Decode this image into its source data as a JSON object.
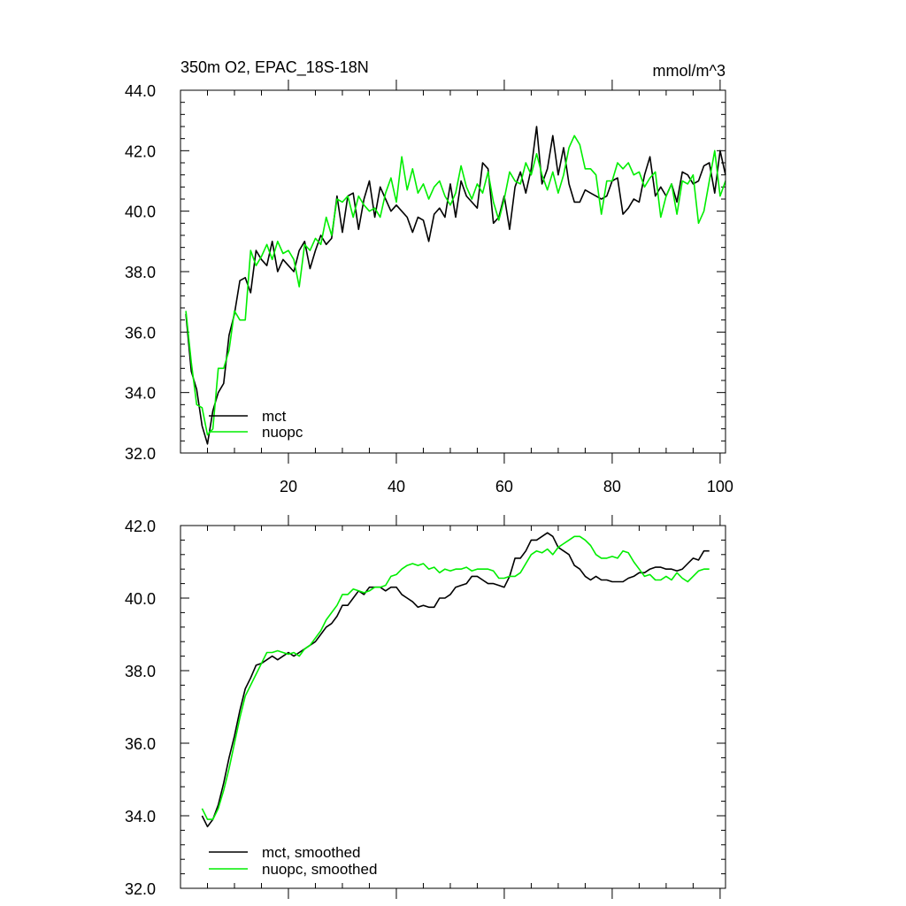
{
  "colors": {
    "mct": "#000000",
    "nuopc": "#00ee00"
  },
  "chart_data": [
    {
      "type": "line",
      "title": "350m O2, EPAC_18S-18N",
      "units": "mmol/m^3",
      "xlim": [
        0,
        101
      ],
      "ylim": [
        32,
        44
      ],
      "xticks": [
        20,
        40,
        60,
        80,
        100
      ],
      "xtick_labels": [
        "20",
        "40",
        "60",
        "80",
        "100"
      ],
      "yticks": [
        32,
        34,
        36,
        38,
        40,
        42,
        44
      ],
      "ytick_labels": [
        "32.0",
        "34.0",
        "36.0",
        "38.0",
        "40.0",
        "42.0",
        "44.0"
      ],
      "legend": {
        "position": "bottom-left",
        "entries": [
          "mct",
          "nuopc"
        ]
      },
      "series": [
        {
          "name": "mct",
          "color": "#000000",
          "x": [
            1,
            2,
            3,
            4,
            5,
            6,
            7,
            8,
            9,
            10,
            11,
            12,
            13,
            14,
            15,
            16,
            17,
            18,
            19,
            20,
            21,
            22,
            23,
            24,
            25,
            26,
            27,
            28,
            29,
            30,
            31,
            32,
            33,
            34,
            35,
            36,
            37,
            38,
            39,
            40,
            41,
            42,
            43,
            44,
            45,
            46,
            47,
            48,
            49,
            50,
            51,
            52,
            53,
            54,
            55,
            56,
            57,
            58,
            59,
            60,
            61,
            62,
            63,
            64,
            65,
            66,
            67,
            68,
            69,
            70,
            71,
            72,
            73,
            74,
            75,
            76,
            77,
            78,
            79,
            80,
            81,
            82,
            83,
            84,
            85,
            86,
            87,
            88,
            89,
            90,
            91,
            92,
            93,
            94,
            95,
            96,
            97,
            98,
            99,
            100,
            101
          ],
          "y": [
            36.6,
            34.7,
            34.1,
            32.9,
            32.3,
            33.4,
            34.0,
            34.3,
            35.9,
            36.6,
            37.7,
            37.8,
            37.3,
            38.7,
            38.4,
            38.2,
            39.0,
            38.0,
            38.4,
            38.2,
            38.0,
            38.7,
            39.0,
            38.1,
            38.7,
            39.2,
            38.9,
            39.1,
            40.5,
            39.3,
            40.5,
            40.6,
            39.4,
            40.4,
            41.0,
            39.8,
            40.8,
            40.4,
            40.0,
            40.2,
            40.0,
            39.8,
            39.3,
            39.8,
            39.7,
            39.0,
            39.9,
            40.1,
            39.8,
            40.9,
            39.8,
            41.0,
            40.5,
            40.3,
            40.1,
            41.6,
            41.4,
            39.6,
            39.8,
            40.5,
            39.4,
            40.8,
            41.3,
            40.6,
            41.4,
            42.8,
            40.9,
            41.4,
            42.5,
            41.2,
            42.1,
            40.9,
            40.3,
            40.3,
            40.7,
            40.6,
            40.5,
            40.4,
            40.5,
            41.0,
            41.1,
            39.9,
            40.1,
            40.4,
            40.3,
            41.2,
            41.8,
            40.5,
            40.8,
            40.5,
            40.9,
            40.3,
            41.3,
            41.2,
            40.9,
            41.0,
            41.5,
            41.6,
            40.6,
            42.0,
            41.2
          ]
        },
        {
          "name": "nuopc",
          "color": "#00ee00",
          "x": [
            1,
            2,
            3,
            4,
            5,
            6,
            7,
            8,
            9,
            10,
            11,
            12,
            13,
            14,
            15,
            16,
            17,
            18,
            19,
            20,
            21,
            22,
            23,
            24,
            25,
            26,
            27,
            28,
            29,
            30,
            31,
            32,
            33,
            34,
            35,
            36,
            37,
            38,
            39,
            40,
            41,
            42,
            43,
            44,
            45,
            46,
            47,
            48,
            49,
            50,
            51,
            52,
            53,
            54,
            55,
            56,
            57,
            58,
            59,
            60,
            61,
            62,
            63,
            64,
            65,
            66,
            67,
            68,
            69,
            70,
            71,
            72,
            73,
            74,
            75,
            76,
            77,
            78,
            79,
            80,
            81,
            82,
            83,
            84,
            85,
            86,
            87,
            88,
            89,
            90,
            91,
            92,
            93,
            94,
            95,
            96,
            97,
            98,
            99,
            100,
            101
          ],
          "y": [
            36.7,
            35.0,
            33.6,
            33.5,
            32.6,
            32.8,
            34.8,
            34.8,
            35.4,
            36.7,
            36.4,
            36.4,
            38.7,
            38.2,
            38.5,
            38.9,
            38.4,
            39.0,
            38.6,
            38.7,
            38.4,
            37.5,
            38.9,
            38.7,
            39.1,
            38.9,
            39.8,
            39.2,
            40.4,
            40.3,
            40.5,
            39.8,
            40.5,
            40.2,
            40.0,
            40.1,
            39.8,
            40.6,
            41.1,
            40.3,
            41.8,
            40.7,
            41.4,
            40.6,
            40.9,
            40.4,
            40.8,
            41.0,
            40.5,
            40.2,
            40.6,
            41.5,
            40.8,
            40.4,
            40.9,
            40.6,
            41.3,
            40.3,
            39.7,
            40.4,
            41.3,
            41.0,
            40.9,
            41.6,
            41.2,
            41.9,
            41.2,
            40.7,
            41.3,
            40.6,
            41.2,
            42.1,
            42.5,
            42.2,
            41.4,
            41.4,
            41.2,
            39.9,
            41.0,
            41.0,
            41.6,
            41.4,
            41.6,
            41.2,
            41.3,
            40.8,
            41.1,
            41.3,
            39.8,
            40.5,
            40.9,
            39.9,
            41.0,
            40.9,
            41.2,
            39.6,
            40.0,
            41.0,
            42.0,
            40.5,
            41.0
          ]
        }
      ]
    },
    {
      "type": "line",
      "xlim": [
        0,
        101
      ],
      "ylim": [
        32,
        42
      ],
      "xticks": [
        20,
        40,
        60,
        80,
        100
      ],
      "yticks": [
        32,
        34,
        36,
        38,
        40,
        42
      ],
      "ytick_labels": [
        "32.0",
        "34.0",
        "36.0",
        "38.0",
        "40.0",
        "42.0"
      ],
      "legend": {
        "position": "bottom-left",
        "entries": [
          "mct, smoothed",
          "nuopc, smoothed"
        ]
      },
      "series": [
        {
          "name": "mct, smoothed",
          "color": "#000000",
          "x": [
            4,
            5,
            6,
            7,
            8,
            9,
            10,
            11,
            12,
            13,
            14,
            15,
            16,
            17,
            18,
            19,
            20,
            21,
            22,
            23,
            24,
            25,
            26,
            27,
            28,
            29,
            30,
            31,
            32,
            33,
            34,
            35,
            36,
            37,
            38,
            39,
            40,
            41,
            42,
            43,
            44,
            45,
            46,
            47,
            48,
            49,
            50,
            51,
            52,
            53,
            54,
            55,
            56,
            57,
            58,
            59,
            60,
            61,
            62,
            63,
            64,
            65,
            66,
            67,
            68,
            69,
            70,
            71,
            72,
            73,
            74,
            75,
            76,
            77,
            78,
            79,
            80,
            81,
            82,
            83,
            84,
            85,
            86,
            87,
            88,
            89,
            90,
            91,
            92,
            93,
            94,
            95,
            96,
            97,
            98
          ],
          "y": [
            34.0,
            33.7,
            33.9,
            34.3,
            34.9,
            35.6,
            36.2,
            36.9,
            37.5,
            37.8,
            38.15,
            38.2,
            38.3,
            38.4,
            38.3,
            38.4,
            38.5,
            38.4,
            38.5,
            38.6,
            38.7,
            38.8,
            39.0,
            39.2,
            39.3,
            39.5,
            39.8,
            39.8,
            40.0,
            40.2,
            40.1,
            40.3,
            40.3,
            40.3,
            40.2,
            40.3,
            40.3,
            40.1,
            40.0,
            39.9,
            39.75,
            39.8,
            39.75,
            39.75,
            40.0,
            40.0,
            40.1,
            40.3,
            40.35,
            40.4,
            40.6,
            40.6,
            40.5,
            40.4,
            40.4,
            40.35,
            40.3,
            40.6,
            41.1,
            41.1,
            41.3,
            41.6,
            41.6,
            41.7,
            41.8,
            41.7,
            41.4,
            41.3,
            41.2,
            40.9,
            40.8,
            40.6,
            40.5,
            40.6,
            40.5,
            40.5,
            40.45,
            40.45,
            40.45,
            40.55,
            40.6,
            40.7,
            40.7,
            40.8,
            40.85,
            40.85,
            40.8,
            40.8,
            40.75,
            40.8,
            40.95,
            41.1,
            41.05,
            41.3,
            41.3
          ]
        },
        {
          "name": "nuopc, smoothed",
          "color": "#00ee00",
          "x": [
            4,
            5,
            6,
            7,
            8,
            9,
            10,
            11,
            12,
            13,
            14,
            15,
            16,
            17,
            18,
            19,
            20,
            21,
            22,
            23,
            24,
            25,
            26,
            27,
            28,
            29,
            30,
            31,
            32,
            33,
            34,
            35,
            36,
            37,
            38,
            39,
            40,
            41,
            42,
            43,
            44,
            45,
            46,
            47,
            48,
            49,
            50,
            51,
            52,
            53,
            54,
            55,
            56,
            57,
            58,
            59,
            60,
            61,
            62,
            63,
            64,
            65,
            66,
            67,
            68,
            69,
            70,
            71,
            72,
            73,
            74,
            75,
            76,
            77,
            78,
            79,
            80,
            81,
            82,
            83,
            84,
            85,
            86,
            87,
            88,
            89,
            90,
            91,
            92,
            93,
            94,
            95,
            96,
            97,
            98
          ],
          "y": [
            34.2,
            33.9,
            33.9,
            34.2,
            34.7,
            35.3,
            36.0,
            36.7,
            37.3,
            37.6,
            37.9,
            38.2,
            38.5,
            38.5,
            38.55,
            38.5,
            38.45,
            38.5,
            38.4,
            38.6,
            38.7,
            38.9,
            39.1,
            39.4,
            39.6,
            39.8,
            40.1,
            40.1,
            40.25,
            40.2,
            40.15,
            40.2,
            40.3,
            40.3,
            40.35,
            40.6,
            40.65,
            40.8,
            40.9,
            40.95,
            40.9,
            40.95,
            40.8,
            40.85,
            40.7,
            40.8,
            40.75,
            40.8,
            40.8,
            40.85,
            40.75,
            40.8,
            40.8,
            40.8,
            40.75,
            40.55,
            40.55,
            40.6,
            40.6,
            40.7,
            40.95,
            41.2,
            41.3,
            41.25,
            41.35,
            41.2,
            41.4,
            41.5,
            41.6,
            41.7,
            41.7,
            41.6,
            41.45,
            41.2,
            41.1,
            41.1,
            41.15,
            41.1,
            41.3,
            41.25,
            41.0,
            40.8,
            40.6,
            40.65,
            40.5,
            40.5,
            40.6,
            40.5,
            40.7,
            40.55,
            40.45,
            40.6,
            40.75,
            40.8,
            40.8
          ]
        }
      ]
    }
  ]
}
